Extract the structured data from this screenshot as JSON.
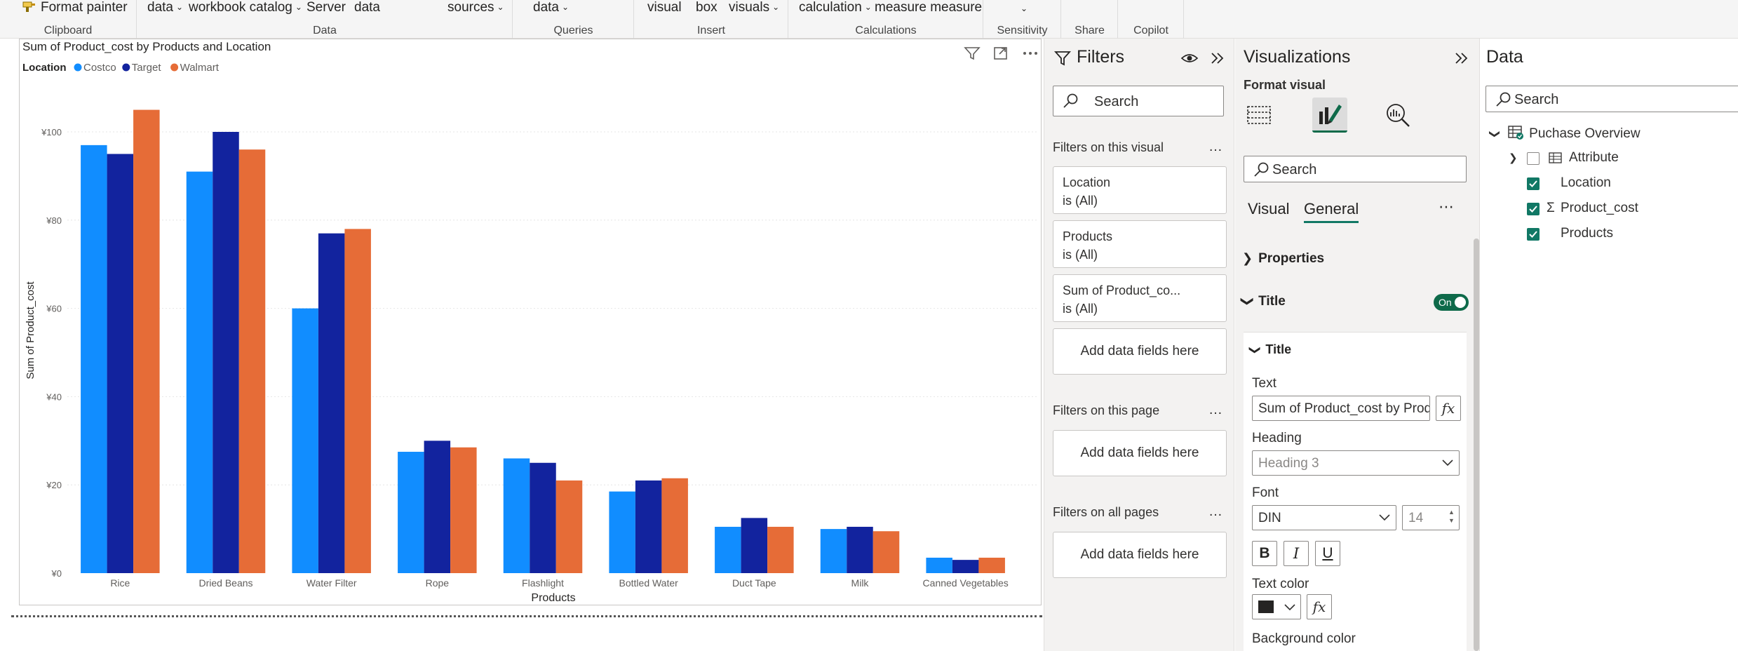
{
  "ribbon": {
    "format_painter": "Format painter",
    "clipboard_group": "Clipboard",
    "get_data": "data",
    "workbook_catalog": "workbook catalog",
    "server": "Server",
    "data_item": "data",
    "sources": "sources",
    "data_group": "Data",
    "queries_data": "data",
    "queries_group": "Queries",
    "visual": "visual",
    "box": "box",
    "visuals": "visuals",
    "insert_group": "Insert",
    "calculation": "calculation",
    "measure": "measure measure",
    "calculations_group": "Calculations",
    "sensitivity_group": "Sensitivity",
    "share_group": "Share",
    "copilot_group": "Copilot"
  },
  "chart_data": {
    "type": "bar",
    "title": "Sum of Product_cost by Products and Location",
    "legend_title": "Location",
    "legend_position": "top-left",
    "xlabel": "Products",
    "ylabel": "Sum of Product_cost",
    "categories": [
      "Rice",
      "Dried Beans",
      "Water Filter",
      "Rope",
      "Flashlight",
      "Bottled Water",
      "Duct Tape",
      "Milk",
      "Canned Vegetables"
    ],
    "ylim": [
      0,
      105
    ],
    "yticks": [
      0,
      20,
      40,
      60,
      80,
      100
    ],
    "ytick_labels": [
      "¥0",
      "¥20",
      "¥40",
      "¥60",
      "¥80",
      "¥100"
    ],
    "grid": true,
    "series": [
      {
        "name": "Costco",
        "color": "#118dff",
        "values": [
          97,
          91,
          60,
          27.5,
          26,
          18.5,
          10.5,
          10,
          3.5
        ]
      },
      {
        "name": "Target",
        "color": "#12239e",
        "values": [
          95,
          100,
          77,
          30,
          25,
          21,
          12.5,
          10.5,
          3
        ]
      },
      {
        "name": "Walmart",
        "color": "#e66c37",
        "values": [
          105,
          96,
          78,
          28.5,
          21,
          21.5,
          10.5,
          9.5,
          3.5
        ]
      }
    ]
  },
  "filters": {
    "title": "Filters",
    "search_placeholder": "Search",
    "on_visual": "Filters on this visual",
    "cards": [
      {
        "field": "Location",
        "state": "is (All)"
      },
      {
        "field": "Products",
        "state": "is (All)"
      },
      {
        "field": "Sum of Product_co...",
        "state": "is (All)"
      }
    ],
    "add_fields": "Add data fields here",
    "on_page": "Filters on this page",
    "on_all_pages": "Filters on all pages"
  },
  "visualizations": {
    "title": "Visualizations",
    "format_visual": "Format visual",
    "search_placeholder": "Search",
    "tab_visual": "Visual",
    "tab_general": "General",
    "properties": "Properties",
    "title_section": "Title",
    "toggle_on": "On",
    "title_sub": "Title",
    "text_label": "Text",
    "text_value": "Sum of Product_cost by Products and Location",
    "fx": "fx",
    "heading_label": "Heading",
    "heading_value": "Heading 3",
    "font_label": "Font",
    "font_value": "DIN",
    "font_size": "14",
    "bold": "B",
    "italic": "I",
    "underline": "U",
    "text_color_label": "Text color",
    "background_color_label": "Background color"
  },
  "data_pane": {
    "title": "Data",
    "search_placeholder": "Search",
    "table_name": "Puchase Overview",
    "fields": [
      {
        "name": "Attribute",
        "checked": false,
        "type": "table"
      },
      {
        "name": "Location",
        "checked": true,
        "type": "text"
      },
      {
        "name": "Product_cost",
        "checked": true,
        "type": "sum"
      },
      {
        "name": "Products",
        "checked": true,
        "type": "text"
      }
    ]
  }
}
